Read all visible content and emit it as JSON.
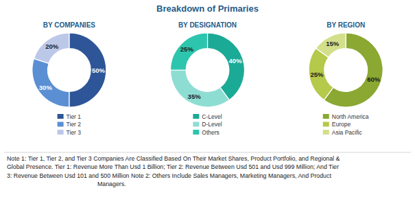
{
  "title": "Breakdown of Primaries",
  "chart_data": [
    {
      "type": "donut",
      "title": "BY COMPANIES",
      "categories": [
        "Tier 1",
        "Tier 2",
        "Tier 3"
      ],
      "values": [
        50,
        30,
        20
      ],
      "value_labels": [
        "50%",
        "30%",
        "20%"
      ],
      "colors": [
        "#2E5597",
        "#5B8FD4",
        "#BCC8E8"
      ],
      "data_labels": true,
      "legend": "bottom"
    },
    {
      "type": "donut",
      "title": "BY DESIGNATION",
      "categories": [
        "C-Level",
        "D-Level",
        "Others"
      ],
      "values": [
        40,
        35,
        25
      ],
      "value_labels": [
        "40%",
        "35%",
        "25%"
      ],
      "colors": [
        "#1BAA96",
        "#8EDDD3",
        "#2DC5AD"
      ],
      "data_labels": true,
      "legend": "bottom"
    },
    {
      "type": "donut",
      "title": "BY REGION",
      "categories": [
        "North America",
        "Europe",
        "Asia Pacific"
      ],
      "values": [
        60,
        25,
        15
      ],
      "value_labels": [
        "60%",
        "25%",
        "15%"
      ],
      "colors": [
        "#8AA832",
        "#B5C94A",
        "#D4DF8C"
      ],
      "data_labels": true,
      "legend": "bottom"
    }
  ],
  "annotations": [
    "Note 1: Tier 1, Tier 2, and Tier 3 Companies Are Classified Based On Their Market Shares, Product Portfolio, and Regional &\nGlobal Presence. Tier 1: Revenue More Than Usd 1 Billion; Tier 2: Revenue Between Usd 501 and Usd 999 Million; And Tier\n3: Revenue Between Usd 101 and 500 Million Note 2: Others Include Sales Managers, Marketing Managers, And Product\n                                                      Managers."
  ]
}
